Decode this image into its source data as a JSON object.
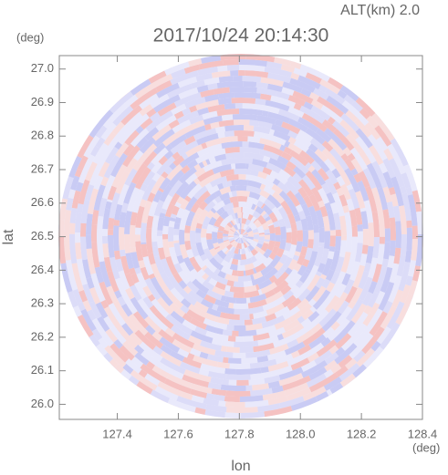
{
  "chart_data": {
    "type": "radar-ppi",
    "title": "2017/10/24 20:14:30",
    "subtitle": "ALT(km) 2.0",
    "x_label": "lon",
    "y_label": "lat",
    "x_unit": "(deg)",
    "y_unit": "(deg)",
    "xlim": [
      127.21,
      128.4
    ],
    "xticks": [
      127.4,
      127.6,
      127.8,
      {
        "value": 128.0,
        "label": "128.0"
      },
      128.2,
      128.4
    ],
    "ylim": [
      25.955,
      27.04
    ],
    "yticks": [
      {
        "value": 26.0,
        "label": "26.0"
      },
      26.1,
      26.2,
      26.3,
      26.4,
      26.5,
      26.6,
      26.7,
      26.8,
      26.9,
      {
        "value": 27.0,
        "label": "27.0"
      }
    ],
    "colors": [
      "#f5c2c2",
      "#c9cbf4",
      "#e9e9fb",
      "#f8dede",
      "#dcdcf8"
    ]
  }
}
